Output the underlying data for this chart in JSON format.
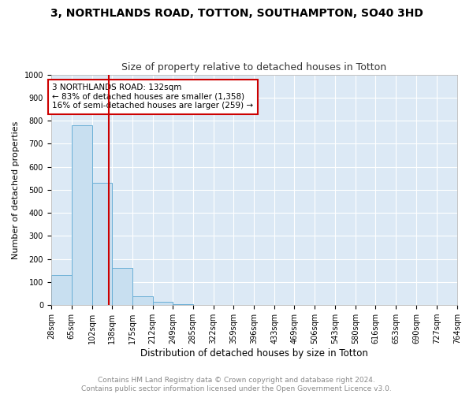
{
  "title": "3, NORTHLANDS ROAD, TOTTON, SOUTHAMPTON, SO40 3HD",
  "subtitle": "Size of property relative to detached houses in Totton",
  "xlabel": "Distribution of detached houses by size in Totton",
  "ylabel": "Number of detached properties",
  "bins": [
    28,
    65,
    102,
    138,
    175,
    212,
    249,
    285,
    322,
    359,
    396,
    433,
    469,
    506,
    543,
    580,
    616,
    653,
    690,
    727,
    764
  ],
  "counts": [
    130,
    780,
    530,
    160,
    40,
    15,
    5,
    0,
    0,
    0,
    0,
    0,
    0,
    0,
    0,
    0,
    0,
    0,
    0,
    0
  ],
  "bar_facecolor": "#c8dff0",
  "bar_edgecolor": "#6aafd6",
  "background_color": "#dce9f5",
  "fig_background_color": "#ffffff",
  "grid_color": "#ffffff",
  "red_line_x": 132,
  "annotation_text": "3 NORTHLANDS ROAD: 132sqm\n← 83% of detached houses are smaller (1,358)\n16% of semi-detached houses are larger (259) →",
  "annotation_box_facecolor": "#ffffff",
  "annotation_box_edgecolor": "#cc0000",
  "ylim": [
    0,
    1000
  ],
  "yticks": [
    0,
    100,
    200,
    300,
    400,
    500,
    600,
    700,
    800,
    900,
    1000
  ],
  "footer": "Contains HM Land Registry data © Crown copyright and database right 2024.\nContains public sector information licensed under the Open Government Licence v3.0.",
  "title_fontsize": 10,
  "subtitle_fontsize": 9,
  "tick_fontsize": 7,
  "ylabel_fontsize": 8,
  "xlabel_fontsize": 8.5,
  "annotation_fontsize": 7.5,
  "footer_fontsize": 6.5,
  "footer_color": "#888888"
}
